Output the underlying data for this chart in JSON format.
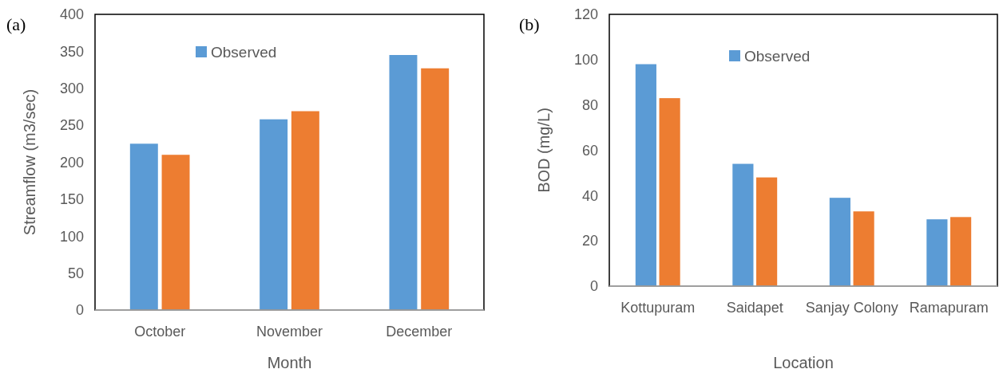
{
  "chart_data": [
    {
      "type": "bar",
      "annotations": [
        "(a)"
      ],
      "xlabel": "Month",
      "ylabel": "Streamflow (m3/sec)",
      "categories": [
        "October",
        "November",
        "December"
      ],
      "series": [
        {
          "name": "Observed",
          "color": "#5b9bd5",
          "values": [
            225,
            258,
            345
          ]
        },
        {
          "color": "#ed7d31",
          "values": [
            210,
            269,
            327
          ]
        }
      ],
      "ylim": [
        0,
        400
      ],
      "yticks": [
        0,
        50,
        100,
        150,
        200,
        250,
        300,
        350,
        400
      ],
      "grid": false,
      "legend": "top"
    },
    {
      "type": "bar",
      "annotations": [
        "(b)"
      ],
      "xlabel": "Location",
      "ylabel": "BOD (mg/L)",
      "categories": [
        "Kottupuram",
        "Saidapet",
        "Sanjay Colony",
        "Ramapuram"
      ],
      "series": [
        {
          "name": "Observed",
          "color": "#5b9bd5",
          "values": [
            98,
            54,
            39,
            29.5
          ]
        },
        {
          "color": "#ed7d31",
          "values": [
            83,
            48,
            33,
            30.5
          ]
        }
      ],
      "ylim": [
        0,
        120
      ],
      "yticks": [
        0,
        20,
        40,
        60,
        80,
        100,
        120
      ],
      "grid": false,
      "legend": "top"
    }
  ]
}
